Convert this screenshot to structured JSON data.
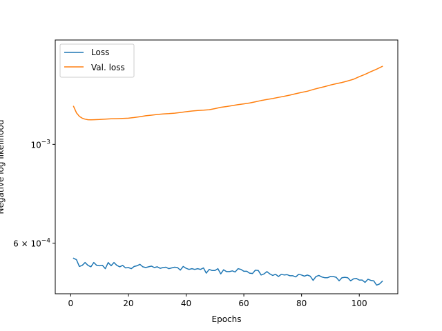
{
  "chart_data": {
    "type": "line",
    "title": "",
    "xlabel": "Epochs",
    "ylabel": "Negative log likelihood",
    "yscale": "log",
    "xlim": [
      -5.35,
      113.35
    ],
    "ylim": [
      0.000462,
      0.001715
    ],
    "grid": false,
    "legend_position": "upper-left",
    "x_ticks": [
      {
        "value": 0,
        "label": "0"
      },
      {
        "value": 20,
        "label": "20"
      },
      {
        "value": 40,
        "label": "40"
      },
      {
        "value": 60,
        "label": "60"
      },
      {
        "value": 80,
        "label": "80"
      },
      {
        "value": 100,
        "label": "100"
      }
    ],
    "y_ticks": [
      {
        "value": 0.0006,
        "mantissa": "6",
        "times": "×",
        "base": "10",
        "exponent": "−4"
      },
      {
        "value": 0.001,
        "mantissa": "",
        "times": "",
        "base": "10",
        "exponent": "−3"
      }
    ],
    "series": [
      {
        "name": "Loss",
        "color": "#1f77b4",
        "x": [
          1,
          2,
          3,
          4,
          5,
          6,
          7,
          8,
          9,
          10,
          11,
          12,
          13,
          14,
          15,
          16,
          17,
          18,
          19,
          20,
          21,
          22,
          23,
          24,
          25,
          26,
          27,
          28,
          29,
          30,
          31,
          32,
          33,
          34,
          35,
          36,
          37,
          38,
          39,
          40,
          41,
          42,
          43,
          44,
          45,
          46,
          47,
          48,
          49,
          50,
          51,
          52,
          53,
          54,
          55,
          56,
          57,
          58,
          59,
          60,
          61,
          62,
          63,
          64,
          65,
          66,
          67,
          68,
          69,
          70,
          71,
          72,
          73,
          74,
          75,
          76,
          77,
          78,
          79,
          80,
          81,
          82,
          83,
          84,
          85,
          86,
          87,
          88,
          89,
          90,
          91,
          92,
          93,
          94,
          95,
          96,
          97,
          98,
          99,
          100,
          101,
          102,
          103,
          104,
          105,
          106,
          107,
          108
        ],
        "y": [
          0.000555,
          0.000551,
          0.000532,
          0.000535,
          0.000543,
          0.000535,
          0.000531,
          0.000543,
          0.000535,
          0.000534,
          0.000535,
          0.000526,
          0.000543,
          0.000534,
          0.000543,
          0.000535,
          0.000531,
          0.000535,
          0.000528,
          0.000529,
          0.000526,
          0.000532,
          0.000534,
          0.000538,
          0.000531,
          0.000529,
          0.000531,
          0.000533,
          0.000529,
          0.000531,
          0.000527,
          0.000529,
          0.00053,
          0.000526,
          0.000528,
          0.00053,
          0.000529,
          0.000522,
          0.000532,
          0.000527,
          0.000524,
          0.000526,
          0.000524,
          0.000526,
          0.000524,
          0.000528,
          0.000514,
          0.000524,
          0.000521,
          0.000521,
          0.000526,
          0.000512,
          0.000523,
          0.000518,
          0.000518,
          0.00052,
          0.000517,
          0.000526,
          0.000524,
          0.000519,
          0.000519,
          0.000514,
          0.000513,
          0.000522,
          0.000521,
          0.000509,
          0.000512,
          0.000518,
          0.000512,
          0.000508,
          0.000511,
          0.000505,
          0.000511,
          0.000509,
          0.00051,
          0.000507,
          0.000507,
          0.000504,
          0.000511,
          0.000509,
          0.000506,
          0.000509,
          0.000506,
          0.000495,
          0.000505,
          0.000508,
          0.000504,
          0.000502,
          0.000502,
          0.000505,
          0.000505,
          0.000503,
          0.000494,
          0.000502,
          0.000503,
          0.000502,
          0.000494,
          0.000499,
          0.0005,
          0.000496,
          0.000496,
          0.00049,
          0.000498,
          0.000495,
          0.000494,
          0.000483,
          0.000486,
          0.000493
        ]
      },
      {
        "name": "Val. loss",
        "color": "#ff7f0e",
        "x": [
          1,
          2,
          3,
          4,
          5,
          6,
          7,
          8,
          10,
          12,
          14,
          16,
          18,
          20,
          22,
          24,
          26,
          28,
          30,
          32,
          34,
          36,
          38,
          40,
          42,
          44,
          46,
          48,
          50,
          52,
          54,
          56,
          58,
          60,
          62,
          64,
          66,
          68,
          70,
          72,
          74,
          76,
          78,
          80,
          82,
          84,
          86,
          88,
          90,
          92,
          94,
          96,
          98,
          100,
          102,
          104,
          106,
          108
        ],
        "y": [
          0.001217,
          0.001177,
          0.001156,
          0.001145,
          0.001139,
          0.001136,
          0.001135,
          0.001136,
          0.001137,
          0.001139,
          0.001141,
          0.001142,
          0.001143,
          0.001145,
          0.001149,
          0.001154,
          0.001159,
          0.001163,
          0.001167,
          0.00117,
          0.001172,
          0.001175,
          0.001179,
          0.001184,
          0.001188,
          0.001191,
          0.001193,
          0.001196,
          0.001203,
          0.001211,
          0.001216,
          0.001222,
          0.001228,
          0.001233,
          0.001238,
          0.001246,
          0.001254,
          0.001261,
          0.001267,
          0.001275,
          0.001282,
          0.00129,
          0.001299,
          0.001308,
          0.001316,
          0.001328,
          0.001338,
          0.001348,
          0.001359,
          0.001368,
          0.001377,
          0.001388,
          0.0014,
          0.001419,
          0.001436,
          0.001456,
          0.001475,
          0.001496
        ]
      }
    ]
  }
}
